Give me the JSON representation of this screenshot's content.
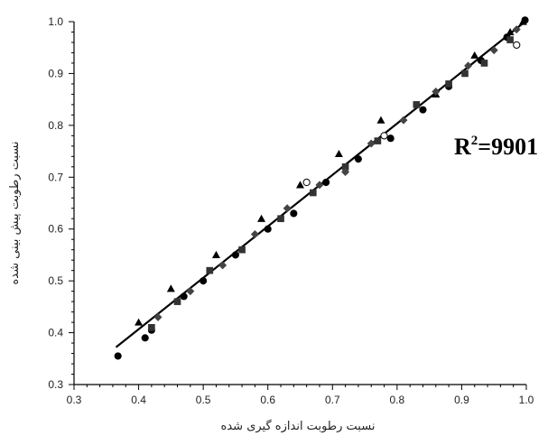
{
  "chart_data": {
    "type": "scatter",
    "xlabel": "نسبت رطوبت اندازه گیری شده",
    "ylabel": "نسبت رطوبت پیش بینی شده",
    "xlim": [
      0.3,
      1.0
    ],
    "ylim": [
      0.3,
      1.0
    ],
    "x_ticks": [
      "0.3",
      "0.4",
      "0.5",
      "0.6",
      "0.7",
      "0.8",
      "0.9",
      "1.0"
    ],
    "y_ticks": [
      "0.3",
      "0.4",
      "0.5",
      "0.6",
      "0.7",
      "0.8",
      "0.9",
      "1.0"
    ],
    "grid": false,
    "legend": "none",
    "annotation": {
      "base": "R",
      "sup": "2",
      "rest": "=9901"
    },
    "fit_line": {
      "x": [
        0.365,
        0.995
      ],
      "y": [
        0.372,
        0.997
      ],
      "color": "#000000"
    },
    "series": [
      {
        "marker": "triangle",
        "color": "#000000",
        "points": [
          [
            0.4,
            0.42
          ],
          [
            0.45,
            0.485
          ],
          [
            0.52,
            0.55
          ],
          [
            0.59,
            0.62
          ],
          [
            0.65,
            0.685
          ],
          [
            0.71,
            0.745
          ],
          [
            0.775,
            0.81
          ],
          [
            0.86,
            0.86
          ],
          [
            0.92,
            0.935
          ],
          [
            0.975,
            0.98
          ],
          [
            0.995,
            1.0
          ]
        ]
      },
      {
        "marker": "circle",
        "color": "#000000",
        "points": [
          [
            0.368,
            0.355
          ],
          [
            0.41,
            0.39
          ],
          [
            0.42,
            0.405
          ],
          [
            0.47,
            0.47
          ],
          [
            0.5,
            0.5
          ],
          [
            0.55,
            0.55
          ],
          [
            0.6,
            0.6
          ],
          [
            0.64,
            0.63
          ],
          [
            0.69,
            0.69
          ],
          [
            0.74,
            0.735
          ],
          [
            0.79,
            0.775
          ],
          [
            0.84,
            0.83
          ],
          [
            0.88,
            0.875
          ],
          [
            0.93,
            0.925
          ],
          [
            0.97,
            0.97
          ],
          [
            0.998,
            1.003
          ]
        ]
      },
      {
        "marker": "square",
        "color": "#333333",
        "points": [
          [
            0.42,
            0.41
          ],
          [
            0.46,
            0.46
          ],
          [
            0.51,
            0.52
          ],
          [
            0.56,
            0.56
          ],
          [
            0.62,
            0.62
          ],
          [
            0.67,
            0.67
          ],
          [
            0.72,
            0.72
          ],
          [
            0.77,
            0.77
          ],
          [
            0.83,
            0.84
          ],
          [
            0.88,
            0.88
          ],
          [
            0.905,
            0.9
          ],
          [
            0.935,
            0.92
          ],
          [
            0.975,
            0.965
          ]
        ]
      },
      {
        "marker": "diamond",
        "color": "#444444",
        "points": [
          [
            0.43,
            0.43
          ],
          [
            0.48,
            0.48
          ],
          [
            0.53,
            0.53
          ],
          [
            0.58,
            0.59
          ],
          [
            0.63,
            0.64
          ],
          [
            0.68,
            0.685
          ],
          [
            0.72,
            0.71
          ],
          [
            0.76,
            0.765
          ],
          [
            0.81,
            0.81
          ],
          [
            0.86,
            0.865
          ],
          [
            0.91,
            0.915
          ],
          [
            0.95,
            0.945
          ],
          [
            0.985,
            0.985
          ]
        ]
      },
      {
        "marker": "open-circle",
        "color": "#000000",
        "points": [
          [
            0.66,
            0.69
          ],
          [
            0.78,
            0.78
          ],
          [
            0.985,
            0.955
          ]
        ]
      }
    ]
  }
}
